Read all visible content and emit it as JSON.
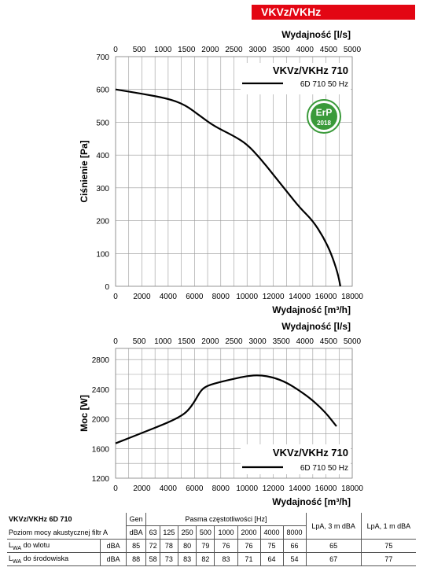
{
  "header": {
    "title": "VKVz/VKHz",
    "color": "#e30613"
  },
  "chart_data": [
    {
      "type": "line",
      "x_top_label": "Wydajność [l/s]",
      "x_top_ticks": [
        "0",
        "500",
        "1000",
        "1500",
        "2000",
        "2500",
        "3000",
        "3500",
        "4000",
        "4500",
        "5000"
      ],
      "xlabel": "Wydajność [m³/h]",
      "x_ticks": [
        "0",
        "2000",
        "4000",
        "6000",
        "8000",
        "10000",
        "12000",
        "14000",
        "16000",
        "18000"
      ],
      "xlim": [
        0,
        18000
      ],
      "ylabel": "Ciśnienie [Pa]",
      "y_ticks": [
        "0",
        "100",
        "200",
        "300",
        "400",
        "500",
        "600",
        "700"
      ],
      "ylim": [
        0,
        700
      ],
      "grid": true,
      "legend_title": "VKVz/VKHz 710",
      "series": [
        {
          "name": "6D 710 50 Hz",
          "x": [
            0,
            2000,
            4000,
            5300,
            6500,
            7500,
            9000,
            10000,
            11000,
            12000,
            13000,
            14000,
            15000,
            15800,
            16400,
            16900,
            17100
          ],
          "y": [
            600,
            587,
            572,
            553,
            517,
            488,
            458,
            433,
            390,
            340,
            290,
            240,
            200,
            150,
            100,
            40,
            0
          ]
        }
      ],
      "badge": {
        "line1": "ErP",
        "line2": "2018",
        "color": "#3a9a3a"
      }
    },
    {
      "type": "line",
      "x_top_label": "Wydajność [l/s]",
      "x_top_ticks": [
        "0",
        "500",
        "1000",
        "1500",
        "2000",
        "2500",
        "3000",
        "3500",
        "4000",
        "4500",
        "5000"
      ],
      "xlabel": "Wydajność [m³/h]",
      "x_ticks": [
        "0",
        "2000",
        "4000",
        "6000",
        "8000",
        "10000",
        "12000",
        "14000",
        "16000",
        "18000"
      ],
      "xlim": [
        0,
        18000
      ],
      "ylabel": "Moc [W]",
      "y_ticks": [
        "1200",
        "1600",
        "2000",
        "2400",
        "2800"
      ],
      "ylim": [
        1200,
        2950
      ],
      "grid": true,
      "legend_title": "VKVz/VKHz 710",
      "series": [
        {
          "name": "6D 710 50 Hz",
          "x": [
            0,
            2000,
            4000,
            5000,
            5500,
            6000,
            6500,
            7000,
            8000,
            9000,
            10000,
            11000,
            12000,
            13000,
            14000,
            15000,
            16000,
            16800
          ],
          "y": [
            1670,
            1810,
            1950,
            2040,
            2110,
            2230,
            2390,
            2450,
            2500,
            2540,
            2580,
            2590,
            2560,
            2490,
            2380,
            2250,
            2080,
            1900
          ]
        }
      ]
    }
  ],
  "table": {
    "row_header": [
      "VKVz/VKHz 6D 710",
      "Poziom mocy akustycznej filtr A"
    ],
    "gen_label": "Gen",
    "bands_label": "Pasma częstotliwości [Hz]",
    "lpa3_label": "LpA, 3 m dBA",
    "lpa1_label": "LpA, 1 m dBA",
    "unit": "dBA",
    "bands": [
      "63",
      "125",
      "250",
      "500",
      "1000",
      "2000",
      "4000",
      "8000"
    ],
    "rows": [
      {
        "label": "do wlotu",
        "unit": "dBA",
        "gen": "85",
        "values": [
          "72",
          "78",
          "80",
          "79",
          "76",
          "76",
          "75",
          "66"
        ],
        "lpa3": "65",
        "lpa1": "75"
      },
      {
        "label": "do środowiska",
        "unit": "dBA",
        "gen": "88",
        "values": [
          "58",
          "73",
          "83",
          "82",
          "83",
          "71",
          "64",
          "54"
        ],
        "lpa3": "67",
        "lpa1": "77"
      }
    ]
  }
}
